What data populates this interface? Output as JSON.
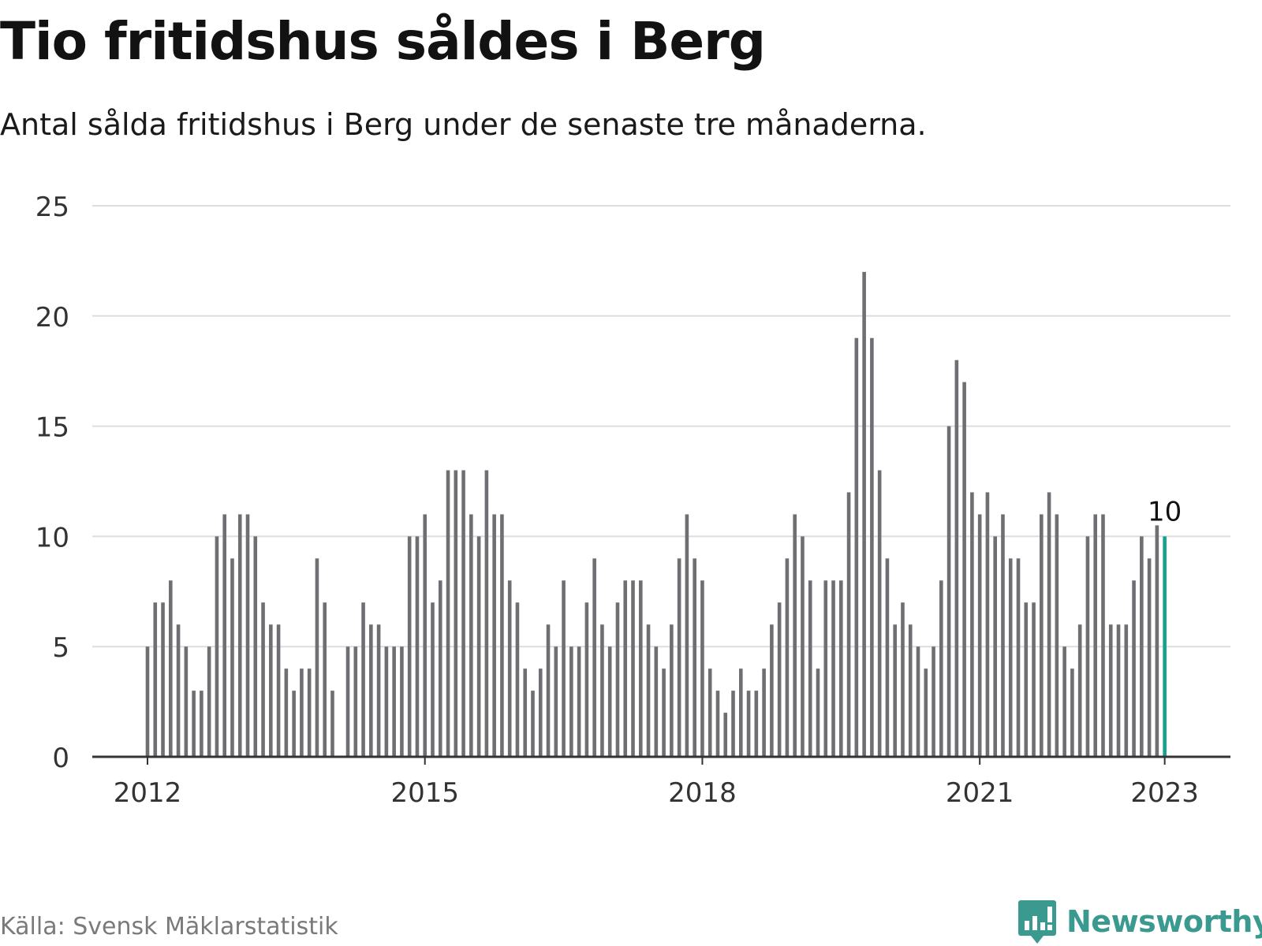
{
  "header": {
    "title": "Tio fritidshus såldes i Berg",
    "subtitle": "Antal sålda fritidshus i Berg under de senaste tre månaderna."
  },
  "footer": {
    "source": "Källa: Svensk Mäklarstatistik",
    "brand": "Newsworthy",
    "brand_icon": "bar-chart-speech-bubble-icon"
  },
  "colors": {
    "bar": "#6e6e73",
    "highlight": "#15a08f",
    "grid": "#dddddd",
    "axis": "#333333",
    "brand": "#3a9a8f"
  },
  "chart_data": {
    "type": "bar",
    "title": "Tio fritidshus såldes i Berg",
    "subtitle": "Antal sålda fritidshus i Berg under de senaste tre månaderna.",
    "ylim": [
      0,
      25
    ],
    "yticks": [
      0,
      5,
      10,
      15,
      20,
      25
    ],
    "xticks": [
      "2012",
      "2015",
      "2018",
      "2021",
      "2023"
    ],
    "grid": true,
    "start": "2012-01",
    "frequency": "monthly",
    "highlight_label": "10",
    "values": [
      5,
      7,
      7,
      8,
      6,
      5,
      3,
      3,
      5,
      10,
      11,
      9,
      11,
      11,
      10,
      7,
      6,
      6,
      4,
      3,
      4,
      4,
      9,
      7,
      3,
      0,
      5,
      5,
      7,
      6,
      6,
      5,
      5,
      5,
      10,
      10,
      11,
      7,
      8,
      13,
      13,
      13,
      11,
      10,
      13,
      11,
      11,
      8,
      7,
      4,
      3,
      4,
      6,
      5,
      8,
      5,
      5,
      7,
      9,
      6,
      5,
      7,
      8,
      8,
      8,
      6,
      5,
      4,
      6,
      9,
      11,
      9,
      8,
      4,
      3,
      2,
      3,
      4,
      3,
      3,
      4,
      6,
      7,
      9,
      11,
      10,
      8,
      4,
      8,
      8,
      8,
      12,
      19,
      22,
      19,
      13,
      9,
      6,
      7,
      6,
      5,
      4,
      5,
      8,
      15,
      18,
      17,
      12,
      11,
      12,
      10,
      11,
      9,
      9,
      7,
      7,
      11,
      12,
      11,
      5,
      4,
      6,
      10,
      11,
      11,
      6,
      6,
      6,
      8,
      10,
      9,
      10.5,
      10
    ]
  }
}
